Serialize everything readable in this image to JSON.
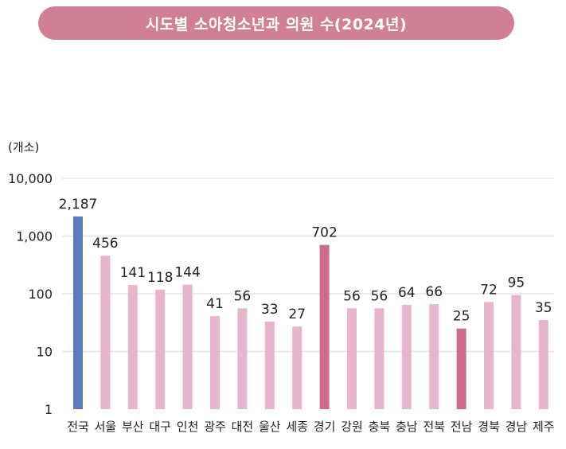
{
  "header": {
    "title": "시도별 소아청소년과 의원 수(2024년)"
  },
  "chart_data": {
    "type": "bar",
    "ylabel": "(개소)",
    "yscale": "log",
    "ylim": [
      1,
      10000
    ],
    "yticks": [
      {
        "value": 1,
        "label": "1"
      },
      {
        "value": 10,
        "label": "10"
      },
      {
        "value": 100,
        "label": "100"
      },
      {
        "value": 1000,
        "label": "1,000"
      },
      {
        "value": 10000,
        "label": "10,000"
      }
    ],
    "grid": true,
    "categories": [
      "전국",
      "서울",
      "부산",
      "대구",
      "인천",
      "광주",
      "대전",
      "울산",
      "세종",
      "경기",
      "강원",
      "충북",
      "충남",
      "전북",
      "전남",
      "경북",
      "경남",
      "제주"
    ],
    "values": [
      2187,
      456,
      141,
      118,
      144,
      41,
      56,
      33,
      27,
      702,
      56,
      56,
      64,
      66,
      25,
      72,
      95,
      35
    ],
    "value_labels": [
      "2,187",
      "456",
      "141",
      "118",
      "144",
      "41",
      "56",
      "33",
      "27",
      "702",
      "56",
      "56",
      "64",
      "66",
      "25",
      "72",
      "95",
      "35"
    ],
    "colors": {
      "default": "#e7b6cc",
      "national": "#5b7bbd",
      "highlight": "#cc6b8b",
      "grid": "#e6e6e6",
      "title_bg": "#d07f95"
    },
    "highlight_categories": [
      "경기",
      "전남"
    ],
    "national_category": "전국"
  }
}
